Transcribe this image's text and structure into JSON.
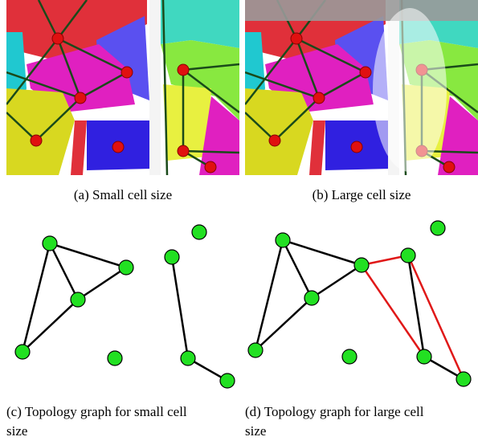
{
  "subfigures": [
    {
      "label": "(a)",
      "caption": "Small cell size"
    },
    {
      "label": "(b)",
      "caption": "Large cell size"
    },
    {
      "label": "(c)",
      "caption": "Topology graph for small cell",
      "caption_wrap": "size"
    },
    {
      "label": "(d)",
      "caption": "Topology graph for large cell",
      "caption_wrap": "size"
    }
  ]
}
